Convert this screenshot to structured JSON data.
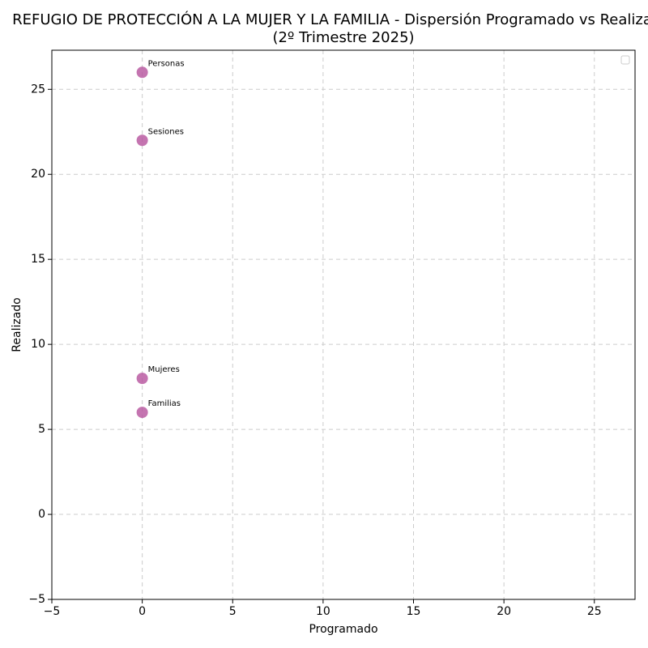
{
  "chart_data": {
    "type": "scatter",
    "title": "REFUGIO DE PROTECCIÓN A LA MUJER Y LA FAMILIA - Dispersión Programado vs Realiza",
    "subtitle": "(2º Trimestre 2025)",
    "x_label": "Programado",
    "y_label": "Realizado",
    "series": [
      {
        "color": "#b5519c",
        "x": [
          0,
          0,
          0,
          0
        ],
        "values": [
          26,
          22,
          8,
          6
        ],
        "point_labels": [
          "Personas",
          "Sesiones",
          "Mujeres",
          "Familias"
        ]
      }
    ],
    "xlim": [
      -5,
      27.25
    ],
    "xticks": [
      {
        "value": -5,
        "label": "−5"
      },
      0,
      5,
      10,
      15,
      20,
      25
    ],
    "ylim": [
      -5,
      27.3
    ],
    "yticks": [
      {
        "value": -5,
        "label": "−5"
      },
      0,
      5,
      10,
      15,
      20,
      25
    ],
    "grid": true,
    "legend": "upper right"
  }
}
